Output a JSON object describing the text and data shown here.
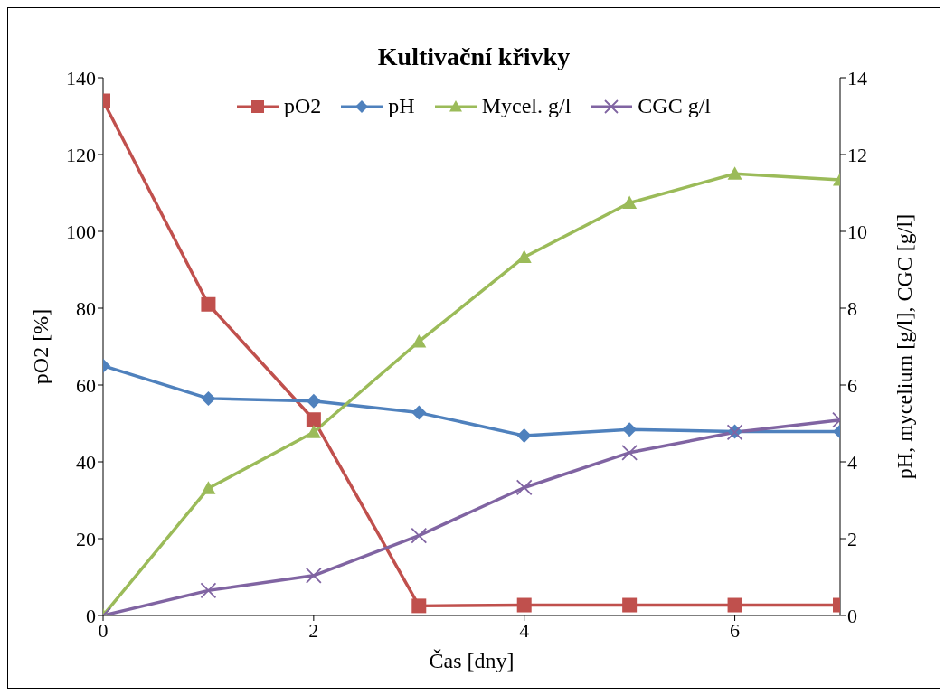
{
  "chart_data": {
    "type": "line",
    "title": "Kultivační křivky",
    "xlabel": "Čas  [dny]",
    "ylabel": "pO2 [%]",
    "y2label": "pH, mycelium [g/l], CGC [g/l]",
    "x": [
      0,
      1,
      2,
      3,
      4,
      5,
      6,
      7
    ],
    "xlim": [
      0,
      7
    ],
    "xticks": [
      0,
      2,
      4,
      6
    ],
    "ylim": [
      0,
      140
    ],
    "yticks": [
      0,
      20,
      40,
      60,
      80,
      100,
      120,
      140
    ],
    "y2lim": [
      0,
      14
    ],
    "y2ticks": [
      0,
      2,
      4,
      6,
      8,
      10,
      12,
      14
    ],
    "grid": false,
    "legend": "top",
    "line_style": "solid",
    "series": [
      {
        "name": "pO2",
        "color": "#c0504d",
        "marker": "square",
        "values": [
          134,
          81,
          51,
          2.5,
          2.7,
          2.7,
          2.7,
          2.7
        ]
      },
      {
        "name": "pH",
        "color": "#4f81bd",
        "marker": "diamond",
        "axis": "y2",
        "values": [
          6.5,
          5.65,
          5.58,
          5.28,
          4.68,
          4.84,
          4.79,
          4.79
        ]
      },
      {
        "name": "Mycel. g/l",
        "color": "#9bbb59",
        "marker": "triangle",
        "axis": "y2",
        "values": [
          0,
          3.31,
          4.77,
          7.13,
          9.33,
          10.74,
          11.5,
          11.34
        ]
      },
      {
        "name": "CGC g/l",
        "color": "#8064a2",
        "marker": "cross",
        "axis": "y2",
        "values": [
          0,
          0.65,
          1.04,
          2.08,
          3.33,
          4.24,
          4.77,
          5.09
        ]
      }
    ]
  }
}
